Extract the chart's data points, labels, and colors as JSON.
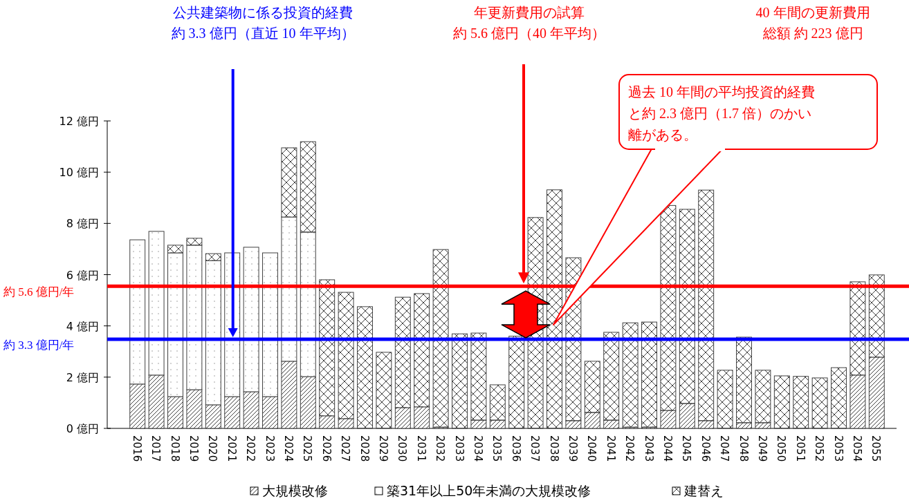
{
  "chart_data": {
    "type": "bar",
    "stacked": true,
    "categories": [
      "2016",
      "2017",
      "2018",
      "2019",
      "2020",
      "2021",
      "2022",
      "2023",
      "2024",
      "2025",
      "2026",
      "2027",
      "2028",
      "2029",
      "2030",
      "2031",
      "2032",
      "2033",
      "2034",
      "2035",
      "2036",
      "2037",
      "2038",
      "2039",
      "2040",
      "2041",
      "2042",
      "2043",
      "2044",
      "2045",
      "2046",
      "2047",
      "2048",
      "2049",
      "2050",
      "2051",
      "2052",
      "2053",
      "2054",
      "2055"
    ],
    "series": [
      {
        "name": "大規模改修",
        "color": "#404040",
        "values": [
          1.73,
          2.08,
          1.24,
          1.51,
          0.92,
          1.24,
          1.43,
          1.24,
          2.62,
          2.02,
          0.49,
          0.38,
          0,
          0,
          0.81,
          0.84,
          0.05,
          0,
          0.32,
          0.32,
          0,
          0,
          0,
          0.3,
          0.62,
          0.32,
          0.05,
          0.05,
          0.7,
          0.97,
          0.3,
          0,
          0.22,
          0.22,
          0,
          0,
          0,
          0,
          2.08,
          2.78
        ]
      },
      {
        "name": "築31年以上50年未満の大規模改修",
        "color": "#404040",
        "values": [
          5.63,
          5.61,
          5.61,
          5.64,
          5.63,
          5.61,
          5.64,
          5.61,
          5.63,
          5.64,
          0,
          0,
          0,
          0,
          0,
          0,
          0,
          0,
          0,
          0,
          0,
          0,
          0,
          0,
          0,
          0,
          0,
          0,
          0,
          0,
          0,
          0,
          0,
          0,
          0,
          0,
          0,
          0,
          0,
          0
        ]
      },
      {
        "name": "建替え",
        "color": "#404040",
        "values": [
          0,
          0,
          0.3,
          0.27,
          0.27,
          0,
          0,
          0,
          2.7,
          3.53,
          5.31,
          4.93,
          4.75,
          2.97,
          4.31,
          4.42,
          6.93,
          3.69,
          3.4,
          1.38,
          3.6,
          8.23,
          9.31,
          6.36,
          2.0,
          3.43,
          4.07,
          4.1,
          8.0,
          7.58,
          9.0,
          2.27,
          3.34,
          2.05,
          2.05,
          2.03,
          1.97,
          2.37,
          3.64,
          3.21
        ]
      }
    ],
    "ylim": [
      0,
      12
    ],
    "yticks": [
      {
        "value": 0,
        "label": "0 億円"
      },
      {
        "value": 2,
        "label": "2 億円"
      },
      {
        "value": 4,
        "label": "4 億円"
      },
      {
        "value": 6,
        "label": "6 億円"
      },
      {
        "value": 8,
        "label": "8 億円"
      },
      {
        "value": 10,
        "label": "10 億円"
      },
      {
        "value": 12,
        "label": "12 億円"
      }
    ],
    "ref_lines": [
      {
        "axis": "y",
        "value": 5.55,
        "label": "約 5.6 億円/年",
        "color": "#ff0000"
      },
      {
        "axis": "y",
        "value": 3.48,
        "label": "約 3.3 億円/年",
        "color": "#0000ff"
      }
    ],
    "annotations": [
      "公共建築物に係る投資的経費約 3.3 億円（直近 10 年平均）",
      "年更新費用の試算約 5.6 億円（40 年平均）",
      "40 年間の更新費用総額 約 223 億円",
      "過去 10 年間の平均投資的経費と約 2.3 億円（1.7 倍）のかい離がある。"
    ],
    "legend": "bottom",
    "grid": false
  }
}
